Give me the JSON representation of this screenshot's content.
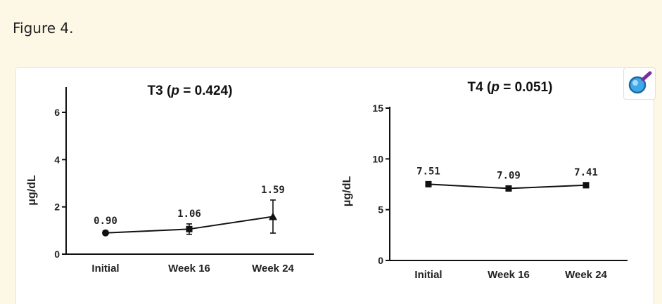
{
  "caption": "Figure 4.",
  "zoom_icon": "magnifier-icon",
  "colors": {
    "page_bg": "#fdf8e6",
    "card_bg": "#ffffff",
    "ink": "#111111",
    "zoom_accent": "#3fa9e8"
  },
  "chart_data": [
    {
      "type": "line",
      "title_main": "T3 (",
      "title_p": "p",
      "title_rest": " = 0.424)",
      "xlabel": "",
      "ylabel": "μg/dL",
      "categories": [
        "Initial",
        "Week 16",
        "Week 24"
      ],
      "ylim": [
        0,
        6
      ],
      "yticks": [
        "0",
        "2",
        "4",
        "6"
      ],
      "marker": "circle-square-triangle",
      "series": [
        {
          "values": [
            0.9,
            1.06,
            1.59
          ],
          "errors": [
            0.08,
            0.22,
            0.7
          ],
          "labels": [
            "0.90",
            "1.06",
            "1.59"
          ]
        }
      ]
    },
    {
      "type": "line",
      "title_main": "T4 (",
      "title_p": "p",
      "title_rest": " = 0.051)",
      "xlabel": "",
      "ylabel": "μg/dL",
      "categories": [
        "Initial",
        "Week 16",
        "Week 24"
      ],
      "ylim": [
        0,
        15
      ],
      "yticks": [
        "0",
        "5",
        "10",
        "15"
      ],
      "marker": "square",
      "series": [
        {
          "values": [
            7.51,
            7.09,
            7.41
          ],
          "errors": [
            0.15,
            0.15,
            0.25
          ],
          "labels": [
            "7.51",
            "7.09",
            "7.41"
          ]
        }
      ]
    }
  ]
}
